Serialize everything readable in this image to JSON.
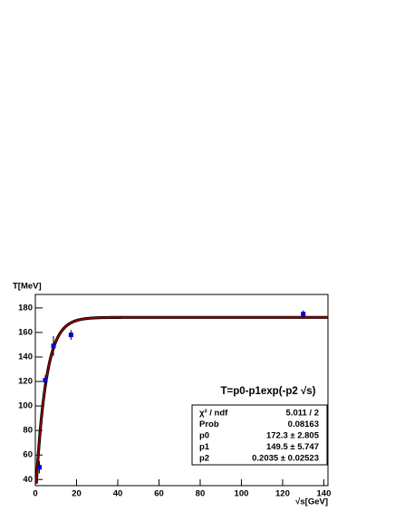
{
  "chart_data": {
    "type": "scatter",
    "title": "T=p0-p1exp(-p2 √s)",
    "ylabel": "T[MeV]",
    "xlabel": "√s[GeV]",
    "x": [
      2,
      4.8,
      8.8,
      17.3,
      130
    ],
    "series": [
      {
        "color": "#0000cc",
        "values": [
          50,
          121,
          149,
          158,
          175
        ],
        "errors": [
          5,
          4,
          8,
          4,
          3
        ]
      }
    ],
    "fit": {
      "color": "#8b0000",
      "p0": 172.3,
      "p1": 149.5,
      "p2": 0.2035
    },
    "stats": [
      [
        "χ² / ndf",
        "5.011 / 2"
      ],
      [
        "Prob",
        "0.08163"
      ],
      [
        "p0",
        "172.3 ± 2.805"
      ],
      [
        "p1",
        "149.5 ± 5.747"
      ],
      [
        "p2",
        "0.2035 ± 0.02523"
      ]
    ],
    "xlim": [
      0,
      142
    ],
    "ylim": [
      35,
      191
    ],
    "xticks": [
      0,
      20,
      40,
      60,
      80,
      100,
      120,
      140
    ],
    "yticks": [
      40,
      60,
      80,
      100,
      120,
      140,
      160,
      180
    ]
  }
}
